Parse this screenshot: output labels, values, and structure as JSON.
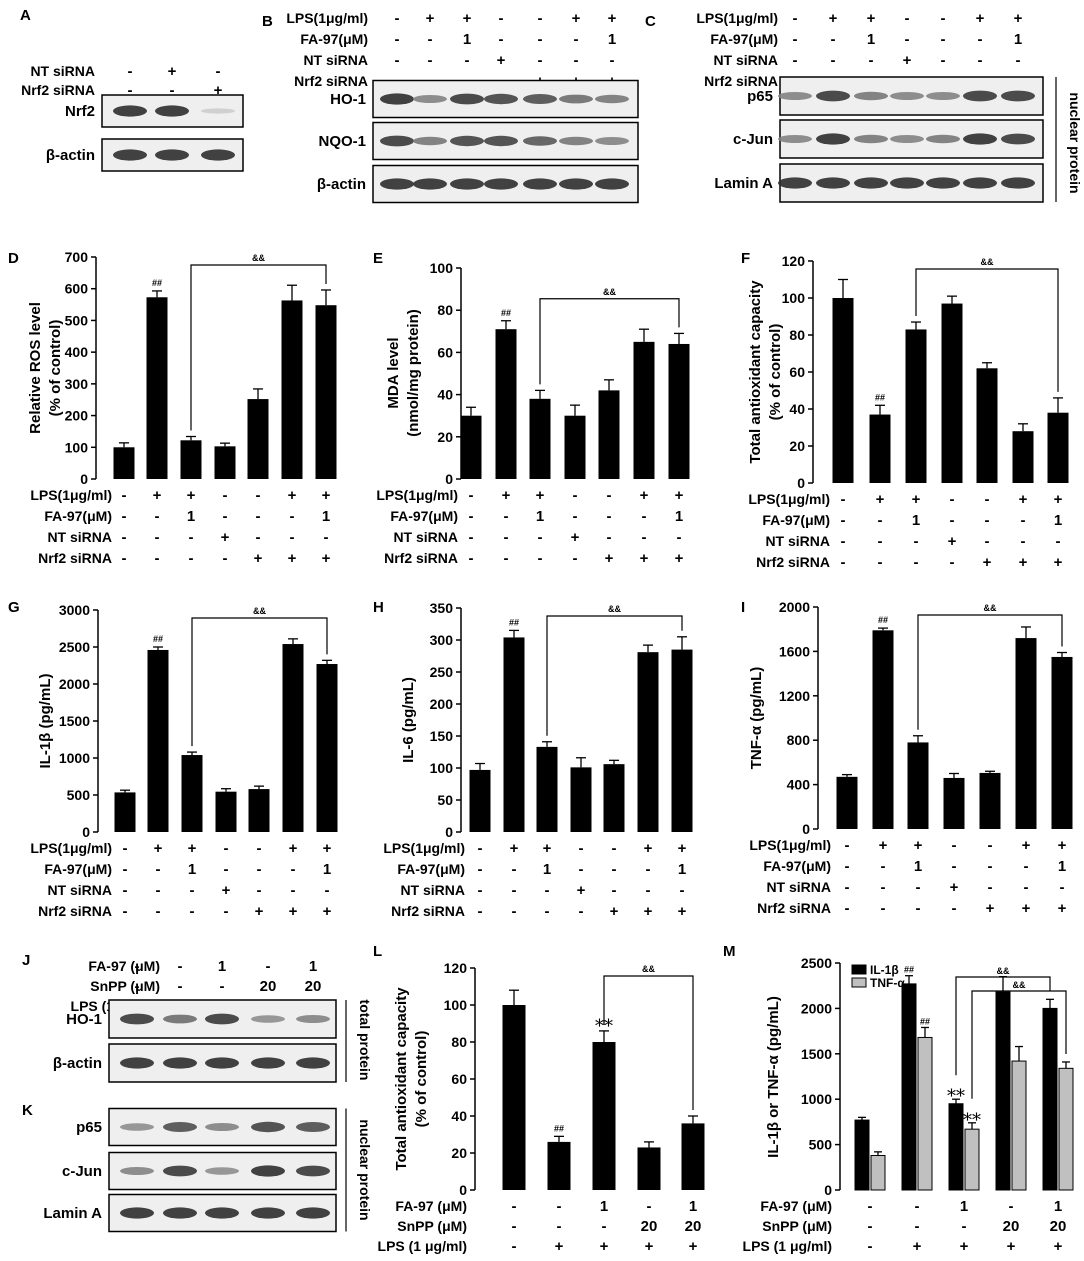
{
  "blots": [
    {
      "letter": "A",
      "treatments": [
        {
          "label": "NT siRNA",
          "signs": [
            "-",
            "+",
            "-"
          ]
        },
        {
          "label": "Nrf2 siRNA",
          "signs": [
            "-",
            "-",
            "+"
          ]
        }
      ],
      "bands": [
        {
          "label": "Nrf2",
          "intensity": [
            0.9,
            0.9,
            0.15
          ]
        },
        {
          "label": "β-actin",
          "intensity": [
            0.9,
            0.9,
            0.9
          ]
        }
      ],
      "side_label": ""
    },
    {
      "letter": "B",
      "treatments": [
        {
          "label": "LPS(1μg/ml)",
          "signs": [
            "-",
            "+",
            "+",
            "-",
            "-",
            "+",
            "+"
          ]
        },
        {
          "label": "FA-97(μM)",
          "signs": [
            "-",
            "-",
            "1",
            "-",
            "-",
            "-",
            "1"
          ]
        },
        {
          "label": "NT siRNA",
          "signs": [
            "-",
            "-",
            "-",
            "+",
            "-",
            "-",
            "-"
          ]
        },
        {
          "label": "Nrf2 siRNA",
          "signs": [
            "-",
            "-",
            "-",
            "-",
            "+",
            "+",
            "+"
          ]
        }
      ],
      "bands": [
        {
          "label": "HO-1",
          "intensity": [
            0.9,
            0.5,
            0.85,
            0.8,
            0.75,
            0.6,
            0.55
          ]
        },
        {
          "label": "NQO-1",
          "intensity": [
            0.85,
            0.55,
            0.8,
            0.8,
            0.7,
            0.55,
            0.5
          ]
        },
        {
          "label": "β-actin",
          "intensity": [
            0.9,
            0.9,
            0.9,
            0.9,
            0.9,
            0.9,
            0.9
          ]
        }
      ],
      "side_label": ""
    },
    {
      "letter": "C",
      "treatments": [
        {
          "label": "LPS(1μg/ml)",
          "signs": [
            "-",
            "+",
            "+",
            "-",
            "-",
            "+",
            "+"
          ]
        },
        {
          "label": "FA-97(μM)",
          "signs": [
            "-",
            "-",
            "1",
            "-",
            "-",
            "-",
            "1"
          ]
        },
        {
          "label": "NT siRNA",
          "signs": [
            "-",
            "-",
            "-",
            "+",
            "-",
            "-",
            "-"
          ]
        },
        {
          "label": "Nrf2 siRNA",
          "signs": [
            "-",
            "-",
            "-",
            "-",
            "+",
            "+",
            "+"
          ]
        }
      ],
      "bands": [
        {
          "label": "p65",
          "intensity": [
            0.5,
            0.85,
            0.55,
            0.5,
            0.5,
            0.85,
            0.85
          ]
        },
        {
          "label": "c-Jun",
          "intensity": [
            0.5,
            0.9,
            0.55,
            0.5,
            0.55,
            0.9,
            0.85
          ]
        },
        {
          "label": "Lamin A",
          "intensity": [
            0.9,
            0.9,
            0.9,
            0.9,
            0.9,
            0.9,
            0.9
          ]
        }
      ],
      "side_label": "nuclear protein"
    },
    {
      "letter": "J",
      "treatments": [
        {
          "label": "FA-97 (μM)",
          "signs": [
            "-",
            "-",
            "1",
            "-",
            "1"
          ]
        },
        {
          "label": "SnPP (μM)",
          "signs": [
            "-",
            "-",
            "-",
            "20",
            "20"
          ]
        },
        {
          "label": "LPS (1 μg/ml)",
          "signs": [
            "-",
            "+",
            "+",
            "+",
            "+"
          ]
        }
      ],
      "bands": [
        {
          "label": "HO-1",
          "intensity": [
            0.85,
            0.6,
            0.85,
            0.45,
            0.5
          ]
        },
        {
          "label": "β-actin",
          "intensity": [
            0.9,
            0.9,
            0.9,
            0.9,
            0.9
          ]
        }
      ],
      "side_label": "total protein"
    },
    {
      "letter": "K",
      "treatments": [],
      "bands": [
        {
          "label": "p65",
          "intensity": [
            0.45,
            0.75,
            0.5,
            0.8,
            0.75
          ]
        },
        {
          "label": "c-Jun",
          "intensity": [
            0.5,
            0.85,
            0.45,
            0.9,
            0.85
          ]
        },
        {
          "label": "Lamin A",
          "intensity": [
            0.9,
            0.9,
            0.9,
            0.9,
            0.9
          ]
        }
      ],
      "side_label": "nuclear protein"
    }
  ],
  "chart_data": [
    {
      "letter": "D",
      "type": "bar",
      "ylabel": [
        "Relative ROS level",
        "(% of control)"
      ],
      "ylim": [
        0,
        700
      ],
      "yticks": [
        0,
        100,
        200,
        300,
        400,
        500,
        600,
        700
      ],
      "values": [
        100,
        573,
        122,
        103,
        252,
        563,
        548
      ],
      "errors": [
        14,
        20,
        12,
        10,
        32,
        48,
        48
      ],
      "marks": [
        "",
        "##",
        "",
        "",
        "",
        "",
        ""
      ],
      "bracket": {
        "from": 2,
        "to": 6,
        "label": "&&"
      },
      "treatments": [
        {
          "label": "LPS(1μg/ml)",
          "signs": [
            "-",
            "+",
            "+",
            "-",
            "-",
            "+",
            "+"
          ]
        },
        {
          "label": "FA-97(μM)",
          "signs": [
            "-",
            "-",
            "1",
            "-",
            "-",
            "-",
            "1"
          ]
        },
        {
          "label": "NT siRNA",
          "signs": [
            "-",
            "-",
            "-",
            "+",
            "-",
            "-",
            "-"
          ]
        },
        {
          "label": "Nrf2 siRNA",
          "signs": [
            "-",
            "-",
            "-",
            "-",
            "+",
            "+",
            "+"
          ]
        }
      ]
    },
    {
      "letter": "E",
      "type": "bar",
      "ylabel": [
        "MDA level",
        "(nmol/mg protein)"
      ],
      "ylim": [
        0,
        100
      ],
      "yticks": [
        0,
        20,
        40,
        60,
        80,
        100
      ],
      "values": [
        30,
        71,
        38,
        30,
        42,
        65,
        64
      ],
      "errors": [
        4,
        4,
        4,
        5,
        5,
        6,
        5
      ],
      "marks": [
        "",
        "##",
        "",
        "",
        "",
        "",
        ""
      ],
      "bracket": {
        "from": 2,
        "to": 6,
        "label": "&&"
      },
      "treatments": [
        {
          "label": "LPS(1μg/ml)",
          "signs": [
            "-",
            "+",
            "+",
            "-",
            "-",
            "+",
            "+"
          ]
        },
        {
          "label": "FA-97(μM)",
          "signs": [
            "-",
            "-",
            "1",
            "-",
            "-",
            "-",
            "1"
          ]
        },
        {
          "label": "NT siRNA",
          "signs": [
            "-",
            "-",
            "-",
            "+",
            "-",
            "-",
            "-"
          ]
        },
        {
          "label": "Nrf2 siRNA",
          "signs": [
            "-",
            "-",
            "-",
            "-",
            "+",
            "+",
            "+"
          ]
        }
      ]
    },
    {
      "letter": "F",
      "type": "bar",
      "ylabel": [
        "Total antioxidant capacity",
        "(% of control)"
      ],
      "ylim": [
        0,
        120
      ],
      "yticks": [
        0,
        20,
        40,
        60,
        80,
        100,
        120
      ],
      "values": [
        100,
        37,
        83,
        97,
        62,
        28,
        38
      ],
      "errors": [
        10,
        5,
        4,
        4,
        3,
        4,
        8
      ],
      "marks": [
        "",
        "##",
        "",
        "",
        "",
        "",
        ""
      ],
      "bracket": {
        "from": 2,
        "to": 6,
        "label": "&&"
      },
      "treatments": [
        {
          "label": "LPS(1μg/ml)",
          "signs": [
            "-",
            "+",
            "+",
            "-",
            "-",
            "+",
            "+"
          ]
        },
        {
          "label": "FA-97(μM)",
          "signs": [
            "-",
            "-",
            "1",
            "-",
            "-",
            "-",
            "1"
          ]
        },
        {
          "label": "NT siRNA",
          "signs": [
            "-",
            "-",
            "-",
            "+",
            "-",
            "-",
            "-"
          ]
        },
        {
          "label": "Nrf2 siRNA",
          "signs": [
            "-",
            "-",
            "-",
            "-",
            "+",
            "+",
            "+"
          ]
        }
      ]
    },
    {
      "letter": "G",
      "type": "bar",
      "ylabel": [
        "IL-1β (pg/mL)"
      ],
      "ylim": [
        0,
        3000
      ],
      "yticks": [
        0,
        500,
        1000,
        1500,
        2000,
        2500,
        3000
      ],
      "values": [
        535,
        2460,
        1040,
        545,
        580,
        2540,
        2270
      ],
      "errors": [
        30,
        40,
        40,
        40,
        40,
        70,
        50
      ],
      "marks": [
        "",
        "##",
        "",
        "",
        "",
        "",
        ""
      ],
      "bracket": {
        "from": 2,
        "to": 6,
        "label": "&&"
      },
      "treatments": [
        {
          "label": "LPS(1μg/ml)",
          "signs": [
            "-",
            "+",
            "+",
            "-",
            "-",
            "+",
            "+"
          ]
        },
        {
          "label": "FA-97(μM)",
          "signs": [
            "-",
            "-",
            "1",
            "-",
            "-",
            "-",
            "1"
          ]
        },
        {
          "label": "NT siRNA",
          "signs": [
            "-",
            "-",
            "-",
            "+",
            "-",
            "-",
            "-"
          ]
        },
        {
          "label": "Nrf2 siRNA",
          "signs": [
            "-",
            "-",
            "-",
            "-",
            "+",
            "+",
            "+"
          ]
        }
      ]
    },
    {
      "letter": "H",
      "type": "bar",
      "ylabel": [
        "IL-6 (pg/mL)"
      ],
      "ylim": [
        0,
        350
      ],
      "yticks": [
        0,
        50,
        100,
        150,
        200,
        250,
        300,
        350
      ],
      "values": [
        97,
        304,
        133,
        101,
        106,
        281,
        285
      ],
      "errors": [
        10,
        11,
        8,
        15,
        6,
        11,
        20
      ],
      "marks": [
        "",
        "##",
        "",
        "",
        "",
        "",
        ""
      ],
      "bracket": {
        "from": 2,
        "to": 6,
        "label": "&&"
      },
      "treatments": [
        {
          "label": "LPS(1μg/ml)",
          "signs": [
            "-",
            "+",
            "+",
            "-",
            "-",
            "+",
            "+"
          ]
        },
        {
          "label": "FA-97(μM)",
          "signs": [
            "-",
            "-",
            "1",
            "-",
            "-",
            "-",
            "1"
          ]
        },
        {
          "label": "NT siRNA",
          "signs": [
            "-",
            "-",
            "-",
            "+",
            "-",
            "-",
            "-"
          ]
        },
        {
          "label": "Nrf2 siRNA",
          "signs": [
            "-",
            "-",
            "-",
            "-",
            "+",
            "+",
            "+"
          ]
        }
      ]
    },
    {
      "letter": "I",
      "type": "bar",
      "ylabel": [
        "TNF-α (pg/mL)"
      ],
      "ylim": [
        0,
        2000
      ],
      "yticks": [
        0,
        400,
        800,
        1200,
        1600,
        2000
      ],
      "values": [
        470,
        1790,
        780,
        460,
        505,
        1720,
        1550
      ],
      "errors": [
        20,
        20,
        60,
        40,
        15,
        100,
        40
      ],
      "marks": [
        "",
        "##",
        "",
        "",
        "",
        "",
        ""
      ],
      "bracket": {
        "from": 2,
        "to": 6,
        "label": "&&"
      },
      "treatments": [
        {
          "label": "LPS(1μg/ml)",
          "signs": [
            "-",
            "+",
            "+",
            "-",
            "-",
            "+",
            "+"
          ]
        },
        {
          "label": "FA-97(μM)",
          "signs": [
            "-",
            "-",
            "1",
            "-",
            "-",
            "-",
            "1"
          ]
        },
        {
          "label": "NT siRNA",
          "signs": [
            "-",
            "-",
            "-",
            "+",
            "-",
            "-",
            "-"
          ]
        },
        {
          "label": "Nrf2 siRNA",
          "signs": [
            "-",
            "-",
            "-",
            "-",
            "+",
            "+",
            "+"
          ]
        }
      ]
    },
    {
      "letter": "L",
      "type": "bar",
      "ylabel": [
        "Total antioxidant capacity",
        "(% of control)"
      ],
      "ylim": [
        0,
        120
      ],
      "yticks": [
        0,
        20,
        40,
        60,
        80,
        100,
        120
      ],
      "values": [
        100,
        26,
        80,
        23,
        36
      ],
      "errors": [
        8,
        3,
        6,
        3,
        4
      ],
      "marks": [
        "",
        "##",
        "**",
        "",
        ""
      ],
      "bracket": {
        "from": 2,
        "to": 4,
        "label": "&&"
      },
      "treatments": [
        {
          "label": "FA-97 (μM)",
          "signs": [
            "-",
            "-",
            "1",
            "-",
            "1"
          ]
        },
        {
          "label": "SnPP (μM)",
          "signs": [
            "-",
            "-",
            "-",
            "20",
            "20"
          ]
        },
        {
          "label": "LPS (1 μg/ml)",
          "signs": [
            "-",
            "+",
            "+",
            "+",
            "+"
          ]
        }
      ]
    },
    {
      "letter": "M",
      "type": "bar",
      "ylabel": [
        "IL-1β or TNF-α (pg/mL)"
      ],
      "ylim": [
        0,
        2500
      ],
      "yticks": [
        0,
        500,
        1000,
        1500,
        2000,
        2500
      ],
      "series": [
        {
          "name": "IL-1β",
          "color": "#000000",
          "values": [
            770,
            2270,
            950,
            2180,
            2000
          ],
          "errors": [
            30,
            90,
            50,
            170,
            100
          ],
          "marks": [
            "",
            "##",
            "**",
            "",
            ""
          ]
        },
        {
          "name": "TNF-α",
          "color": "#c0c0c0",
          "values": [
            380,
            1680,
            670,
            1420,
            1340
          ],
          "errors": [
            40,
            110,
            70,
            160,
            70
          ],
          "marks": [
            "",
            "##",
            "**",
            "",
            ""
          ]
        }
      ],
      "brackets": [
        {
          "from": 2,
          "to": 4,
          "series": 0,
          "label": "&&"
        },
        {
          "from": 2,
          "to": 4,
          "series": 1,
          "label": "&&"
        }
      ],
      "legend": "top-left",
      "treatments": [
        {
          "label": "FA-97 (μM)",
          "signs": [
            "-",
            "-",
            "1",
            "-",
            "1"
          ]
        },
        {
          "label": "SnPP (μM)",
          "signs": [
            "-",
            "-",
            "-",
            "20",
            "20"
          ]
        },
        {
          "label": "LPS (1 μg/ml)",
          "signs": [
            "-",
            "+",
            "+",
            "+",
            "+"
          ]
        }
      ]
    }
  ]
}
